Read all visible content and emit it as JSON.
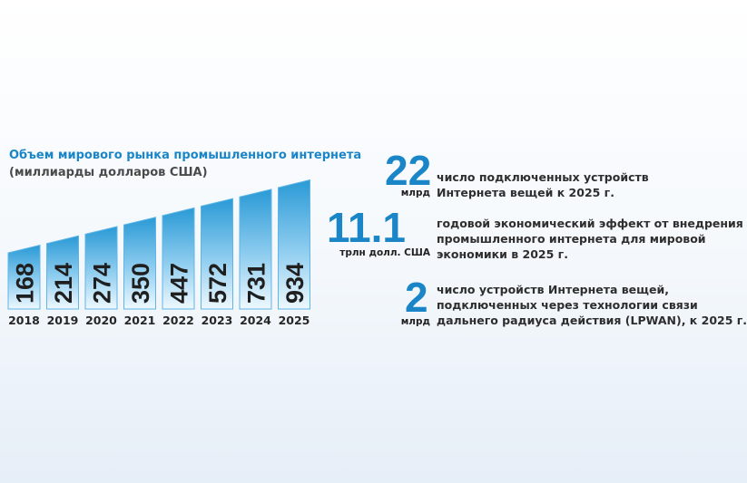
{
  "chart_data": {
    "type": "bar",
    "title": "Объем мирового рынка промышленного интернета",
    "subtitle": "(миллиарды долларов США)",
    "categories": [
      "2018",
      "2019",
      "2020",
      "2021",
      "2022",
      "2023",
      "2024",
      "2025"
    ],
    "values": [
      168,
      214,
      274,
      350,
      447,
      572,
      731,
      934
    ],
    "grid": false,
    "colors": {
      "bar_top": "#2a9ad6",
      "bar_bottom": "#e8f5fd",
      "bar_border": "#5fb6e6",
      "text": "#1f1f1f"
    }
  },
  "stats": [
    {
      "number": "22",
      "unit": "млрд",
      "lines": [
        "число подключенных устройств",
        "Интернета вещей к 2025 г."
      ]
    },
    {
      "number": "11.1",
      "unit": "трлн долл. США",
      "lines": [
        "годовой экономический эффект от внедрения",
        "промышленного интернета для мировой",
        "экономики в 2025 г."
      ]
    },
    {
      "number": "2",
      "unit": "млрд",
      "lines": [
        "число устройств Интернета вещей,",
        "подключенных через технологии связи",
        "дальнего радиуса действия (LPWAN), к 2025 г."
      ]
    }
  ],
  "colors": {
    "accent": "#1a86c8"
  }
}
